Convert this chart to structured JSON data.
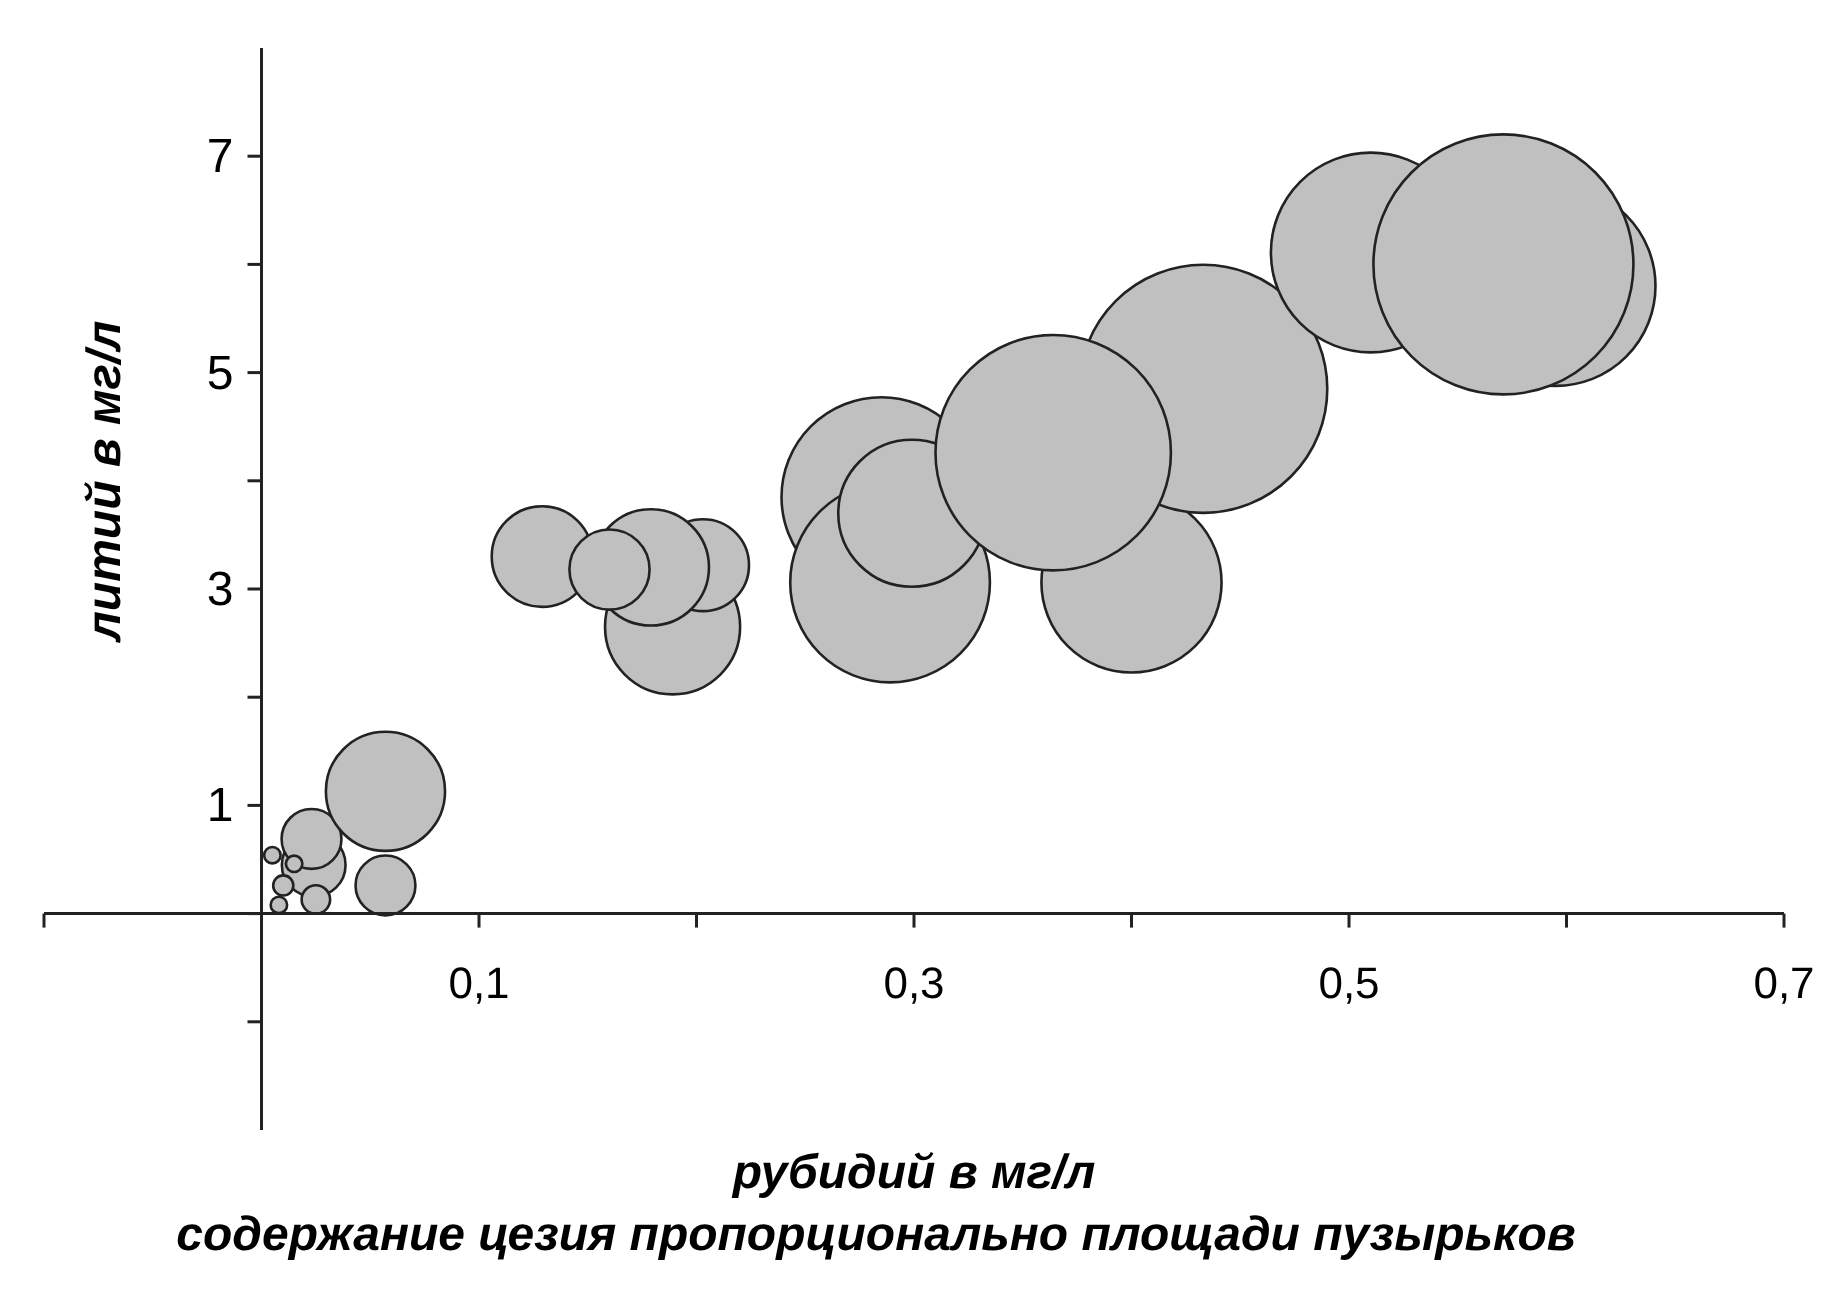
{
  "chart_data": {
    "type": "bubble",
    "xlabel": "рубидий в мг/л",
    "ylabel": "литий в мг/л",
    "annotations": [
      "содержание цезия пропорционально площади пузырьков"
    ],
    "x": [
      0.024,
      0.023,
      0.005,
      0.015,
      0.01,
      0.008,
      0.025,
      0.057,
      0.057,
      0.129,
      0.189,
      0.203,
      0.179,
      0.16,
      0.285,
      0.289,
      0.299,
      0.4,
      0.433,
      0.364,
      0.51,
      0.595,
      0.571
    ],
    "values": [
      0.45,
      0.69,
      0.54,
      0.46,
      0.26,
      0.08,
      0.13,
      1.13,
      0.26,
      3.3,
      2.65,
      3.22,
      3.2,
      3.18,
      3.85,
      3.06,
      3.7,
      3.06,
      4.85,
      4.26,
      6.11,
      5.8,
      6.0
    ],
    "sizes": [
      0.06,
      0.053,
      0.004,
      0.004,
      0.006,
      0.004,
      0.012,
      0.21,
      0.053,
      0.15,
      0.27,
      0.125,
      0.2,
      0.095,
      0.59,
      0.59,
      0.32,
      0.48,
      0.91,
      0.82,
      0.59,
      0.59,
      1
    ],
    "color": "#c0c0c0",
    "xlim": [
      -0.1,
      0.7
    ],
    "ylim": [
      -2,
      8
    ],
    "xticks": [
      {
        "value": -0.1,
        "label": null
      },
      {
        "value": 0,
        "label": null
      },
      {
        "value": 0.1,
        "label": "0,1"
      },
      {
        "value": 0.2,
        "label": null
      },
      {
        "value": 0.3,
        "label": "0,3"
      },
      {
        "value": 0.4,
        "label": null
      },
      {
        "value": 0.5,
        "label": "0,5"
      },
      {
        "value": 0.6,
        "label": null
      },
      {
        "value": 0.7,
        "label": "0,7"
      }
    ],
    "yticks": [
      {
        "value": -1,
        "label": null
      },
      {
        "value": 0,
        "label": null
      },
      1,
      {
        "value": 2,
        "label": null
      },
      3,
      {
        "value": 4,
        "label": null
      },
      5,
      {
        "value": 6,
        "label": null
      },
      7
    ],
    "grid": false
  }
}
